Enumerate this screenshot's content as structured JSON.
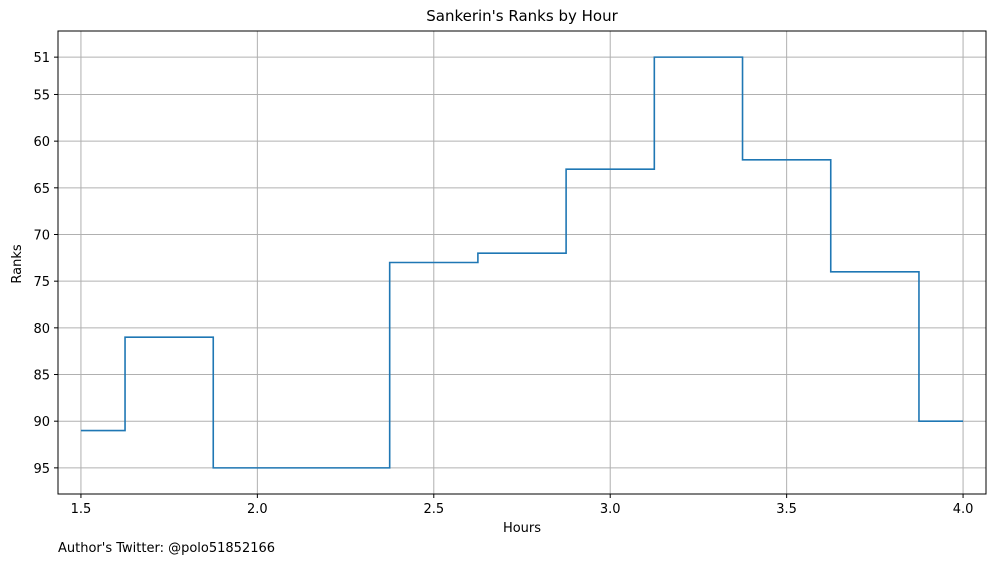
{
  "chart_data": {
    "type": "line",
    "step": "mid",
    "title": "Sankerin's Ranks by Hour",
    "xlabel": "Hours",
    "ylabel": "Ranks",
    "footer": "Author's Twitter: @polo51852166",
    "x": [
      1.5,
      1.75,
      2.0,
      2.25,
      2.5,
      2.75,
      3.0,
      3.25,
      3.5,
      3.75,
      4.0
    ],
    "y": [
      91,
      81,
      95,
      95,
      73,
      72,
      63,
      51,
      62,
      74,
      90
    ],
    "series": [
      {
        "values": [
          91,
          81,
          95,
          95,
          73,
          72,
          63,
          51,
          62,
          74,
          90
        ]
      }
    ],
    "xlim": [
      1.435,
      4.065
    ],
    "ylim": [
      97.8,
      48.2
    ],
    "y_inverted": true,
    "xticks": [
      1.5,
      2.0,
      2.5,
      3.0,
      3.5,
      4.0
    ],
    "xtick_labels": [
      "1.5",
      "2.0",
      "2.5",
      "3.0",
      "3.5",
      "4.0"
    ],
    "yticks": [
      51,
      55,
      60,
      65,
      70,
      75,
      80,
      85,
      90,
      95
    ],
    "ytick_labels": [
      "51",
      "55",
      "60",
      "65",
      "70",
      "75",
      "80",
      "85",
      "90",
      "95"
    ],
    "grid": true,
    "line_color": "#1f77b4",
    "grid_color": "#b0b0b0"
  }
}
